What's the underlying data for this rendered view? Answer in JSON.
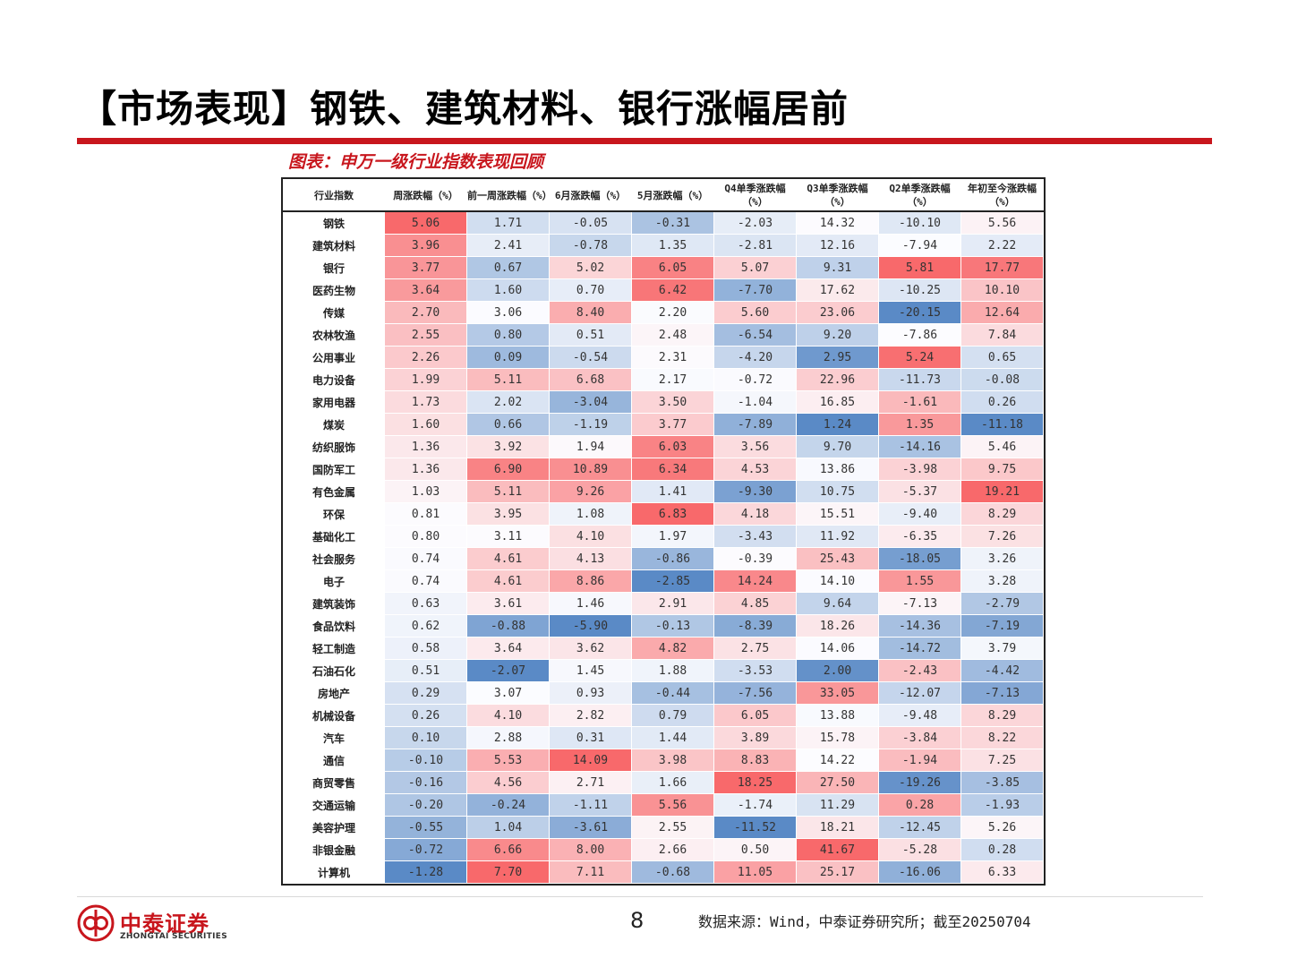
{
  "title": "【市场表现】钢铁、建筑材料、银行涨幅居前",
  "caption": "图表：申万一级行业指数表现回顾",
  "table": {
    "headers": [
      "行业指数",
      "周涨跌幅（%）",
      "前一周涨跌幅（%）",
      "6月涨跌幅（%）",
      "5月涨跌幅（%）",
      "Q4单季涨跌幅（%）",
      "Q3单季涨跌幅（%）",
      "Q2单季涨跌幅（%）",
      "年初至今涨跌幅（%）"
    ],
    "rows": [
      {
        "name": "钢铁",
        "values": [
          "5.06",
          "1.71",
          "-0.05",
          "-0.31",
          "-2.03",
          "14.32",
          "-10.10",
          "5.56"
        ]
      },
      {
        "name": "建筑材料",
        "values": [
          "3.96",
          "2.41",
          "-0.78",
          "1.35",
          "-2.81",
          "12.16",
          "-7.94",
          "2.22"
        ]
      },
      {
        "name": "银行",
        "values": [
          "3.77",
          "0.67",
          "5.02",
          "6.05",
          "5.07",
          "9.31",
          "5.81",
          "17.77"
        ]
      },
      {
        "name": "医药生物",
        "values": [
          "3.64",
          "1.60",
          "0.70",
          "6.42",
          "-7.70",
          "17.62",
          "-10.25",
          "10.10"
        ]
      },
      {
        "name": "传媒",
        "values": [
          "2.70",
          "3.06",
          "8.40",
          "2.20",
          "5.60",
          "23.06",
          "-20.15",
          "12.64"
        ]
      },
      {
        "name": "农林牧渔",
        "values": [
          "2.55",
          "0.80",
          "0.51",
          "2.48",
          "-6.54",
          "9.20",
          "-7.86",
          "7.84"
        ]
      },
      {
        "name": "公用事业",
        "values": [
          "2.26",
          "0.09",
          "-0.54",
          "2.31",
          "-4.20",
          "2.95",
          "5.24",
          "0.65"
        ]
      },
      {
        "name": "电力设备",
        "values": [
          "1.99",
          "5.11",
          "6.68",
          "2.17",
          "-0.72",
          "22.96",
          "-11.73",
          "-0.08"
        ]
      },
      {
        "name": "家用电器",
        "values": [
          "1.73",
          "2.02",
          "-3.04",
          "3.50",
          "-1.04",
          "16.85",
          "-1.61",
          "0.26"
        ]
      },
      {
        "name": "煤炭",
        "values": [
          "1.60",
          "0.66",
          "-1.19",
          "3.77",
          "-7.89",
          "1.24",
          "1.35",
          "-11.18"
        ]
      },
      {
        "name": "纺织服饰",
        "values": [
          "1.36",
          "3.92",
          "1.94",
          "6.03",
          "3.56",
          "9.70",
          "-14.16",
          "5.46"
        ]
      },
      {
        "name": "国防军工",
        "values": [
          "1.36",
          "6.90",
          "10.89",
          "6.34",
          "4.53",
          "13.86",
          "-3.98",
          "9.75"
        ]
      },
      {
        "name": "有色金属",
        "values": [
          "1.03",
          "5.11",
          "9.26",
          "1.41",
          "-9.30",
          "10.75",
          "-5.37",
          "19.21"
        ]
      },
      {
        "name": "环保",
        "values": [
          "0.81",
          "3.95",
          "1.08",
          "6.83",
          "4.18",
          "15.51",
          "-9.40",
          "8.29"
        ]
      },
      {
        "name": "基础化工",
        "values": [
          "0.80",
          "3.11",
          "4.10",
          "1.97",
          "-3.43",
          "11.92",
          "-6.35",
          "7.26"
        ]
      },
      {
        "name": "社会服务",
        "values": [
          "0.74",
          "4.61",
          "4.13",
          "-0.86",
          "-0.39",
          "25.43",
          "-18.05",
          "3.26"
        ]
      },
      {
        "name": "电子",
        "values": [
          "0.74",
          "4.61",
          "8.86",
          "-2.85",
          "14.24",
          "14.10",
          "1.55",
          "3.28"
        ]
      },
      {
        "name": "建筑装饰",
        "values": [
          "0.63",
          "3.61",
          "1.46",
          "2.91",
          "4.85",
          "9.64",
          "-7.13",
          "-2.79"
        ]
      },
      {
        "name": "食品饮料",
        "values": [
          "0.62",
          "-0.88",
          "-5.90",
          "-0.13",
          "-8.39",
          "18.26",
          "-14.36",
          "-7.19"
        ]
      },
      {
        "name": "轻工制造",
        "values": [
          "0.58",
          "3.64",
          "3.62",
          "4.82",
          "2.75",
          "14.06",
          "-14.72",
          "3.79"
        ]
      },
      {
        "name": "石油石化",
        "values": [
          "0.51",
          "-2.07",
          "1.45",
          "1.88",
          "-3.53",
          "2.00",
          "-2.43",
          "-4.42"
        ]
      },
      {
        "name": "房地产",
        "values": [
          "0.29",
          "3.07",
          "0.93",
          "-0.44",
          "-7.56",
          "33.05",
          "-12.07",
          "-7.13"
        ]
      },
      {
        "name": "机械设备",
        "values": [
          "0.26",
          "4.10",
          "2.82",
          "0.79",
          "6.05",
          "13.88",
          "-9.48",
          "8.29"
        ]
      },
      {
        "name": "汽车",
        "values": [
          "0.10",
          "2.88",
          "0.31",
          "1.44",
          "3.89",
          "15.78",
          "-3.84",
          "8.22"
        ]
      },
      {
        "name": "通信",
        "values": [
          "-0.10",
          "5.53",
          "14.09",
          "3.98",
          "8.83",
          "14.22",
          "-1.94",
          "7.25"
        ]
      },
      {
        "name": "商贸零售",
        "values": [
          "-0.16",
          "4.56",
          "2.71",
          "1.66",
          "18.25",
          "27.50",
          "-19.26",
          "-3.85"
        ]
      },
      {
        "name": "交通运输",
        "values": [
          "-0.20",
          "-0.24",
          "-1.11",
          "5.56",
          "-1.74",
          "11.29",
          "0.28",
          "-1.93"
        ]
      },
      {
        "name": "美容护理",
        "values": [
          "-0.55",
          "1.04",
          "-3.61",
          "2.55",
          "-11.52",
          "18.21",
          "-12.45",
          "5.26"
        ]
      },
      {
        "name": "非银金融",
        "values": [
          "-0.72",
          "6.66",
          "8.00",
          "2.66",
          "0.50",
          "41.67",
          "-5.28",
          "0.28"
        ]
      },
      {
        "name": "计算机",
        "values": [
          "-1.28",
          "7.70",
          "7.11",
          "-0.68",
          "11.05",
          "25.17",
          "-16.06",
          "6.33"
        ]
      }
    ]
  },
  "colors": {
    "accent": "#c8161d",
    "high": "#f8696b",
    "mid": "#fcfcff",
    "low": "#5a8ac6"
  },
  "footer": {
    "logo_cn": "中泰证券",
    "logo_en": "ZHONGTAI SECURITIES",
    "page_number": "8",
    "source": "数据来源：Wind，中泰证券研究所；截至20250704"
  }
}
